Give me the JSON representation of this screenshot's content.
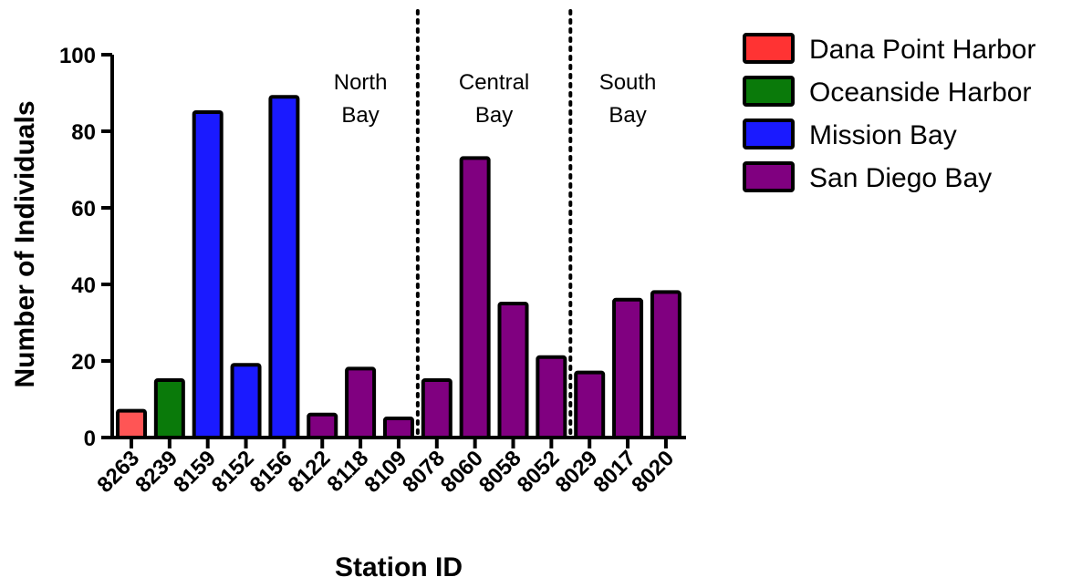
{
  "chart_data": {
    "type": "bar",
    "xlabel": "Station ID",
    "ylabel": "Number of Individuals",
    "ylim": [
      0,
      100
    ],
    "yticks": [
      0,
      20,
      40,
      60,
      80,
      100
    ],
    "categories": [
      "8263",
      "8239",
      "8159",
      "8152",
      "8156",
      "8122",
      "8118",
      "8109",
      "8078",
      "8060",
      "8058",
      "8052",
      "8029",
      "8017",
      "8020"
    ],
    "values": [
      7,
      15,
      85,
      19,
      89,
      6,
      18,
      5,
      15,
      73,
      35,
      21,
      17,
      36,
      38
    ],
    "groups": [
      "Dana Point Harbor",
      "Oceanside Harbor",
      "Mission Bay",
      "Mission Bay",
      "Mission Bay",
      "San Diego Bay",
      "San Diego Bay",
      "San Diego Bay",
      "San Diego Bay",
      "San Diego Bay",
      "San Diego Bay",
      "San Diego Bay",
      "San Diego Bay",
      "San Diego Bay",
      "San Diego Bay"
    ],
    "legend": [
      {
        "name": "Dana Point Harbor",
        "color": "#ff3333"
      },
      {
        "name": "Oceanside Harbor",
        "color": "#0a7a0a"
      },
      {
        "name": "Mission Bay",
        "color": "#1a1aff"
      },
      {
        "name": "San Diego Bay",
        "color": "#800080"
      }
    ],
    "legend_position": "top-right",
    "regions": [
      {
        "line1": "North",
        "line2": "Bay",
        "start": 5,
        "end": 7
      },
      {
        "line1": "Central",
        "line2": "Bay",
        "start": 8,
        "end": 11
      },
      {
        "line1": "South",
        "line2": "Bay",
        "start": 12,
        "end": 14
      }
    ],
    "divider_after": [
      7,
      11
    ],
    "bar_colors": {
      "8263": "#ff5555"
    },
    "grid": false
  }
}
